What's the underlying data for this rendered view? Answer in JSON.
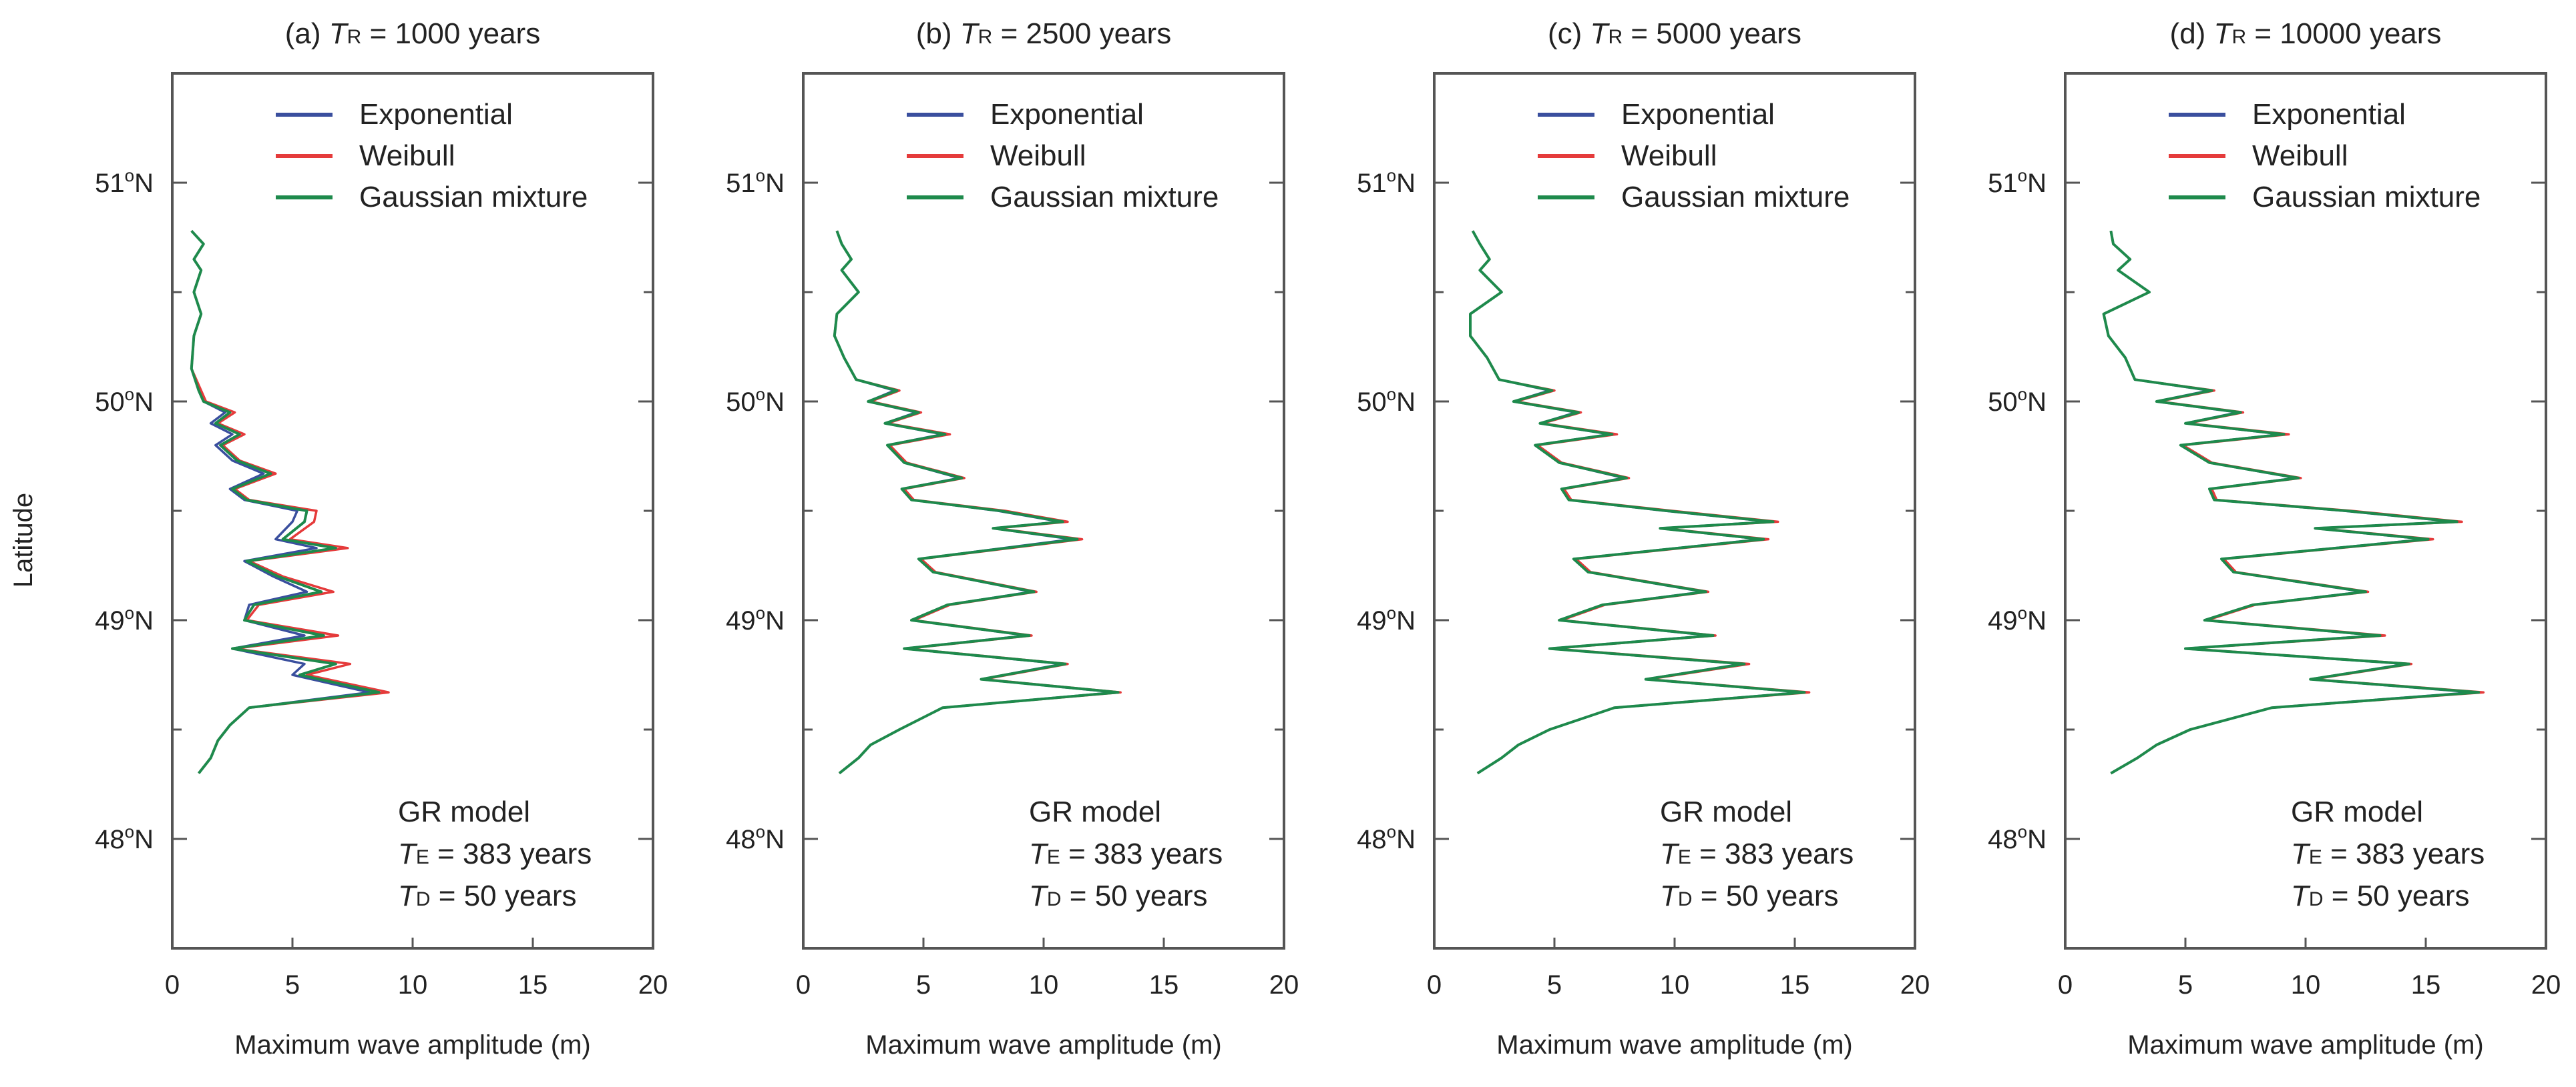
{
  "ylabel": "Latitude",
  "chart_data": [
    {
      "type": "line",
      "panel_label": "(a)",
      "title_var": "T",
      "title_sub": "R",
      "title_value": " = 1000 years",
      "xlabel": "Maximum wave amplitude (m)",
      "ylabel": "Latitude",
      "xlim": [
        0,
        20
      ],
      "ylim": [
        47.5,
        51.5
      ],
      "xticks": [
        "0",
        "5",
        "10",
        "15",
        "20"
      ],
      "yticks": [
        {
          "base": "48",
          "sup": "o",
          "suffix": "N",
          "value": 48
        },
        {
          "base": "49",
          "sup": "o",
          "suffix": "N",
          "value": 49
        },
        {
          "base": "50",
          "sup": "o",
          "suffix": "N",
          "value": 50
        },
        {
          "base": "51",
          "sup": "o",
          "suffix": "N",
          "value": 51
        }
      ],
      "legend": {
        "position": "top-right",
        "entries": [
          "Exponential",
          "Weibull",
          "Gaussian mixture"
        ]
      },
      "annotation": {
        "line1": "GR model",
        "te_var": "T",
        "te_sub": "E",
        "te_value": " = 383 years",
        "td_var": "T",
        "td_sub": "D",
        "td_value": " = 50 years"
      },
      "latitudes": [
        48.3,
        48.37,
        48.45,
        48.52,
        48.6,
        48.67,
        48.75,
        48.8,
        48.87,
        48.93,
        49.0,
        49.07,
        49.13,
        49.2,
        49.27,
        49.33,
        49.37,
        49.45,
        49.5,
        49.55,
        49.6,
        49.67,
        49.73,
        49.8,
        49.85,
        49.9,
        49.95,
        50.0,
        50.05,
        50.15,
        50.3,
        50.4,
        50.5,
        50.6,
        50.65,
        50.72,
        50.78
      ],
      "series": [
        {
          "name": "Exponential",
          "color": "#3a4f9e",
          "values": [
            1.1,
            1.6,
            1.9,
            2.4,
            3.2,
            8.2,
            5.0,
            5.5,
            2.5,
            5.5,
            3.0,
            3.2,
            5.6,
            4.2,
            3.0,
            6.0,
            4.3,
            5.0,
            5.2,
            3.0,
            2.4,
            3.8,
            2.5,
            1.8,
            2.5,
            1.6,
            2.2,
            1.3,
            1.1,
            0.8,
            0.9,
            1.2,
            0.9,
            1.2,
            0.9,
            1.3,
            0.8
          ]
        },
        {
          "name": "Weibull",
          "color": "#e53b3b",
          "values": [
            1.1,
            1.6,
            1.9,
            2.4,
            3.2,
            9.0,
            5.6,
            7.4,
            2.6,
            6.9,
            3.1,
            3.6,
            6.7,
            4.6,
            3.2,
            7.3,
            4.9,
            5.9,
            6.0,
            3.2,
            2.6,
            4.3,
            2.8,
            2.1,
            3.0,
            1.9,
            2.6,
            1.4,
            1.2,
            0.8,
            0.9,
            1.2,
            0.9,
            1.2,
            0.9,
            1.3,
            0.8
          ]
        },
        {
          "name": "Gaussian mixture",
          "color": "#1e8a4c",
          "values": [
            1.1,
            1.6,
            1.9,
            2.4,
            3.2,
            8.6,
            5.3,
            6.8,
            2.5,
            6.3,
            3.0,
            3.4,
            6.2,
            4.4,
            3.1,
            6.8,
            4.6,
            5.5,
            5.6,
            3.1,
            2.5,
            4.1,
            2.7,
            2.0,
            2.8,
            1.8,
            2.4,
            1.3,
            1.1,
            0.8,
            0.9,
            1.2,
            0.9,
            1.2,
            0.9,
            1.3,
            0.8
          ]
        }
      ]
    },
    {
      "type": "line",
      "panel_label": "(b)",
      "title_var": "T",
      "title_sub": "R",
      "title_value": " = 2500 years",
      "xlabel": "Maximum wave amplitude (m)",
      "ylabel": "Latitude",
      "xlim": [
        0,
        20
      ],
      "ylim": [
        47.5,
        51.5
      ],
      "xticks": [
        "0",
        "5",
        "10",
        "15",
        "20"
      ],
      "yticks": [
        {
          "base": "48",
          "sup": "o",
          "suffix": "N",
          "value": 48
        },
        {
          "base": "49",
          "sup": "o",
          "suffix": "N",
          "value": 49
        },
        {
          "base": "50",
          "sup": "o",
          "suffix": "N",
          "value": 50
        },
        {
          "base": "51",
          "sup": "o",
          "suffix": "N",
          "value": 51
        }
      ],
      "legend": {
        "position": "top-right",
        "entries": [
          "Exponential",
          "Weibull",
          "Gaussian mixture"
        ]
      },
      "annotation": {
        "line1": "GR model",
        "te_var": "T",
        "te_sub": "E",
        "te_value": " = 383 years",
        "td_var": "T",
        "td_sub": "D",
        "td_value": " = 50 years"
      },
      "latitudes": [
        48.3,
        48.37,
        48.43,
        48.5,
        48.6,
        48.67,
        48.73,
        48.8,
        48.87,
        48.93,
        49.0,
        49.07,
        49.13,
        49.22,
        49.28,
        49.37,
        49.42,
        49.45,
        49.5,
        49.55,
        49.6,
        49.65,
        49.72,
        49.8,
        49.85,
        49.9,
        49.95,
        50.0,
        50.05,
        50.1,
        50.2,
        50.3,
        50.4,
        50.5,
        50.6,
        50.65,
        50.72,
        50.78
      ],
      "series": [
        {
          "name": "Exponential",
          "color": "#3a4f9e",
          "values": [
            1.5,
            2.3,
            2.8,
            4.0,
            5.8,
            13.0,
            7.4,
            10.8,
            4.2,
            9.3,
            4.5,
            6.0,
            9.5,
            5.4,
            4.8,
            11.2,
            7.9,
            10.7,
            8.1,
            4.5,
            4.1,
            6.5,
            4.2,
            3.5,
            5.8,
            3.4,
            4.7,
            2.7,
            3.8,
            2.2,
            1.7,
            1.3,
            1.4,
            2.3,
            1.6,
            2.0,
            1.6,
            1.4
          ]
        },
        {
          "name": "Weibull",
          "color": "#e53b3b",
          "values": [
            1.5,
            2.3,
            2.8,
            4.0,
            5.8,
            13.2,
            7.5,
            11.0,
            4.3,
            9.5,
            4.6,
            6.1,
            9.7,
            5.5,
            4.9,
            11.6,
            8.0,
            11.0,
            8.4,
            4.6,
            4.2,
            6.7,
            4.3,
            3.6,
            6.1,
            3.5,
            4.9,
            2.8,
            4.0,
            2.2,
            1.7,
            1.3,
            1.4,
            2.3,
            1.6,
            2.0,
            1.6,
            1.4
          ]
        },
        {
          "name": "Gaussian mixture",
          "color": "#1e8a4c",
          "values": [
            1.5,
            2.3,
            2.8,
            4.0,
            5.8,
            13.1,
            7.4,
            10.9,
            4.2,
            9.4,
            4.5,
            6.0,
            9.6,
            5.4,
            4.8,
            11.4,
            7.9,
            10.8,
            8.2,
            4.5,
            4.1,
            6.6,
            4.2,
            3.5,
            5.9,
            3.4,
            4.8,
            2.7,
            3.9,
            2.2,
            1.7,
            1.3,
            1.4,
            2.3,
            1.6,
            2.0,
            1.6,
            1.4
          ]
        }
      ]
    },
    {
      "type": "line",
      "panel_label": "(c)",
      "title_var": "T",
      "title_sub": "R",
      "title_value": " = 5000 years",
      "xlabel": "Maximum wave amplitude (m)",
      "ylabel": "Latitude",
      "xlim": [
        0,
        20
      ],
      "ylim": [
        47.5,
        51.5
      ],
      "xticks": [
        "0",
        "5",
        "10",
        "15",
        "20"
      ],
      "yticks": [
        {
          "base": "48",
          "sup": "o",
          "suffix": "N",
          "value": 48
        },
        {
          "base": "49",
          "sup": "o",
          "suffix": "N",
          "value": 49
        },
        {
          "base": "50",
          "sup": "o",
          "suffix": "N",
          "value": 50
        },
        {
          "base": "51",
          "sup": "o",
          "suffix": "N",
          "value": 51
        }
      ],
      "legend": {
        "position": "top-right",
        "entries": [
          "Exponential",
          "Weibull",
          "Gaussian mixture"
        ]
      },
      "annotation": {
        "line1": "GR model",
        "te_var": "T",
        "te_sub": "E",
        "te_value": " = 383 years",
        "td_var": "T",
        "td_sub": "D",
        "td_value": " = 50 years"
      },
      "latitudes": [
        48.3,
        48.37,
        48.43,
        48.5,
        48.6,
        48.67,
        48.73,
        48.8,
        48.87,
        48.93,
        49.0,
        49.07,
        49.13,
        49.22,
        49.28,
        49.37,
        49.42,
        49.45,
        49.5,
        49.55,
        49.6,
        49.65,
        49.72,
        49.8,
        49.85,
        49.9,
        49.95,
        50.0,
        50.05,
        50.1,
        50.2,
        50.3,
        50.4,
        50.5,
        50.6,
        50.65,
        50.72,
        50.78
      ],
      "series": [
        {
          "name": "Exponential",
          "color": "#3a4f9e",
          "values": [
            1.8,
            2.8,
            3.5,
            4.8,
            7.5,
            15.3,
            8.8,
            12.8,
            4.8,
            11.5,
            5.2,
            7.0,
            11.2,
            6.4,
            5.8,
            13.6,
            9.4,
            14.0,
            9.6,
            5.6,
            5.3,
            7.9,
            5.2,
            4.2,
            7.3,
            4.4,
            5.9,
            3.3,
            4.8,
            2.7,
            2.2,
            1.5,
            1.5,
            2.8,
            1.9,
            2.3,
            1.9,
            1.6
          ]
        },
        {
          "name": "Weibull",
          "color": "#e53b3b",
          "values": [
            1.8,
            2.8,
            3.5,
            4.8,
            7.5,
            15.6,
            8.9,
            13.1,
            4.9,
            11.7,
            5.3,
            7.1,
            11.4,
            6.5,
            5.9,
            13.9,
            9.5,
            14.3,
            9.9,
            5.7,
            5.4,
            8.1,
            5.3,
            4.3,
            7.6,
            4.5,
            6.1,
            3.4,
            5.0,
            2.7,
            2.2,
            1.5,
            1.5,
            2.8,
            1.9,
            2.3,
            1.9,
            1.6
          ]
        },
        {
          "name": "Gaussian mixture",
          "color": "#1e8a4c",
          "values": [
            1.8,
            2.8,
            3.5,
            4.8,
            7.5,
            15.4,
            8.8,
            12.9,
            4.8,
            11.6,
            5.2,
            7.0,
            11.3,
            6.4,
            5.8,
            13.7,
            9.4,
            14.1,
            9.7,
            5.6,
            5.3,
            8.0,
            5.2,
            4.2,
            7.4,
            4.4,
            6.0,
            3.3,
            4.9,
            2.7,
            2.2,
            1.5,
            1.5,
            2.8,
            1.9,
            2.3,
            1.9,
            1.6
          ]
        }
      ]
    },
    {
      "type": "line",
      "panel_label": "(d)",
      "title_var": "T",
      "title_sub": "R",
      "title_value": " = 10000 years",
      "xlabel": "Maximum wave amplitude (m)",
      "ylabel": "Latitude",
      "xlim": [
        0,
        20
      ],
      "ylim": [
        47.5,
        51.5
      ],
      "xticks": [
        "0",
        "5",
        "10",
        "15",
        "20"
      ],
      "yticks": [
        {
          "base": "48",
          "sup": "o",
          "suffix": "N",
          "value": 48
        },
        {
          "base": "49",
          "sup": "o",
          "suffix": "N",
          "value": 49
        },
        {
          "base": "50",
          "sup": "o",
          "suffix": "N",
          "value": 50
        },
        {
          "base": "51",
          "sup": "o",
          "suffix": "N",
          "value": 51
        }
      ],
      "legend": {
        "position": "top-right",
        "entries": [
          "Exponential",
          "Weibull",
          "Gaussian mixture"
        ]
      },
      "annotation": {
        "line1": "GR model",
        "te_var": "T",
        "te_sub": "E",
        "te_value": " = 383 years",
        "td_var": "T",
        "td_sub": "D",
        "td_value": " = 50 years"
      },
      "latitudes": [
        48.3,
        48.37,
        48.43,
        48.5,
        48.6,
        48.67,
        48.73,
        48.8,
        48.87,
        48.93,
        49.0,
        49.07,
        49.13,
        49.22,
        49.28,
        49.37,
        49.42,
        49.45,
        49.5,
        49.55,
        49.6,
        49.65,
        49.72,
        49.8,
        49.85,
        49.9,
        49.95,
        50.0,
        50.05,
        50.1,
        50.2,
        50.3,
        50.4,
        50.5,
        50.6,
        50.65,
        50.72,
        50.78
      ],
      "series": [
        {
          "name": "Exponential",
          "color": "#3a4f9e",
          "values": [
            1.9,
            3.0,
            3.8,
            5.2,
            8.6,
            17.0,
            10.2,
            14.2,
            5.0,
            13.0,
            5.8,
            7.8,
            12.4,
            7.0,
            6.5,
            15.0,
            10.4,
            16.2,
            11.6,
            6.2,
            6.0,
            9.6,
            6.0,
            4.8,
            9.0,
            5.0,
            7.2,
            3.8,
            6.0,
            2.9,
            2.5,
            1.8,
            1.6,
            3.5,
            2.2,
            2.7,
            2.0,
            1.9
          ]
        },
        {
          "name": "Weibull",
          "color": "#e53b3b",
          "values": [
            1.9,
            3.0,
            3.8,
            5.2,
            8.6,
            17.4,
            10.3,
            14.4,
            5.1,
            13.3,
            5.9,
            7.9,
            12.6,
            7.1,
            6.6,
            15.3,
            10.5,
            16.5,
            11.9,
            6.3,
            6.1,
            9.8,
            6.1,
            4.9,
            9.3,
            5.1,
            7.4,
            3.9,
            6.2,
            2.9,
            2.5,
            1.8,
            1.6,
            3.5,
            2.2,
            2.7,
            2.0,
            1.9
          ]
        },
        {
          "name": "Gaussian mixture",
          "color": "#1e8a4c",
          "values": [
            1.9,
            3.0,
            3.8,
            5.2,
            8.6,
            17.2,
            10.2,
            14.3,
            5.0,
            13.1,
            5.8,
            7.8,
            12.5,
            7.0,
            6.5,
            15.1,
            10.4,
            16.3,
            11.7,
            6.2,
            6.0,
            9.7,
            6.0,
            4.8,
            9.1,
            5.0,
            7.3,
            3.8,
            6.1,
            2.9,
            2.5,
            1.8,
            1.6,
            3.5,
            2.2,
            2.7,
            2.0,
            1.9
          ]
        }
      ]
    }
  ]
}
